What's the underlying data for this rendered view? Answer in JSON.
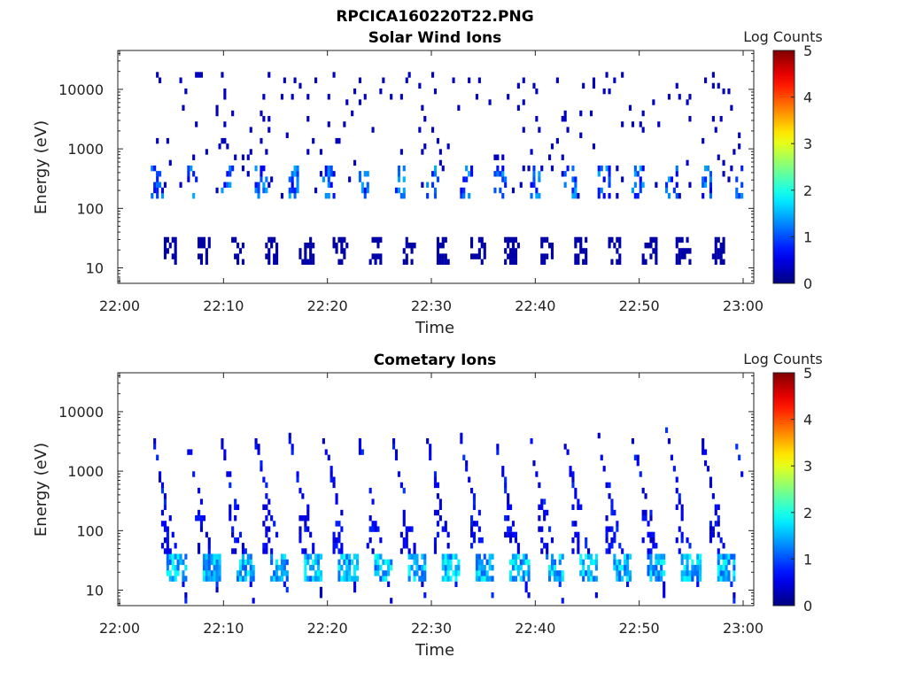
{
  "figure_title": "RPCICA160220T22.PNG",
  "chart_data": [
    {
      "type": "heatmap",
      "title": "Solar Wind Ions",
      "xlabel": "Time",
      "ylabel": "Energy (eV)",
      "x_range": [
        "22:00",
        "23:00"
      ],
      "x_ticks": [
        "22:00",
        "22:10",
        "22:20",
        "22:30",
        "22:40",
        "22:50",
        "23:00"
      ],
      "y_scale": "log",
      "y_range": [
        5.5,
        45000
      ],
      "y_ticks": [
        10,
        100,
        1000,
        10000
      ],
      "y_tick_labels": [
        "10",
        "100",
        "1000",
        "10000"
      ],
      "colorbar": {
        "label": "Log Counts",
        "range": [
          0,
          5
        ],
        "ticks": [
          "0",
          "1",
          "2",
          "3",
          "4",
          "5"
        ],
        "colormap": "jet"
      },
      "data_time_span": [
        "22:03",
        "23:00"
      ],
      "features": [
        {
          "description": "sparse low-count pixels",
          "energy_range": [
            150,
            20000
          ],
          "log_counts": [
            0,
            1
          ]
        },
        {
          "description": "recurring band",
          "energy_range": [
            150,
            500
          ],
          "log_counts": [
            0,
            1.5
          ]
        },
        {
          "description": "recurring low-energy band",
          "energy_range": [
            12,
            35
          ],
          "log_counts": [
            0,
            0.5
          ]
        }
      ],
      "grid": false
    },
    {
      "type": "heatmap",
      "title": "Cometary Ions",
      "xlabel": "Time",
      "ylabel": "Energy (eV)",
      "x_range": [
        "22:00",
        "23:00"
      ],
      "x_ticks": [
        "22:00",
        "22:10",
        "22:20",
        "22:30",
        "22:40",
        "22:50",
        "23:00"
      ],
      "y_scale": "log",
      "y_range": [
        5.5,
        45000
      ],
      "y_ticks": [
        10,
        100,
        1000,
        10000
      ],
      "y_tick_labels": [
        "10",
        "100",
        "1000",
        "10000"
      ],
      "colorbar": {
        "label": "Log Counts",
        "range": [
          0,
          5
        ],
        "ticks": [
          "0",
          "1",
          "2",
          "3",
          "4",
          "5"
        ],
        "colormap": "jet"
      },
      "data_time_span": [
        "22:03",
        "23:00"
      ],
      "features": [
        {
          "description": "recurring dispersion stripes, energy decreasing with time",
          "energy_range": [
            15,
            5000
          ],
          "log_counts": [
            0,
            2
          ]
        },
        {
          "description": "low-energy enhancement",
          "energy_range": [
            15,
            45
          ],
          "log_counts": [
            1,
            2
          ]
        }
      ],
      "grid": false
    }
  ]
}
